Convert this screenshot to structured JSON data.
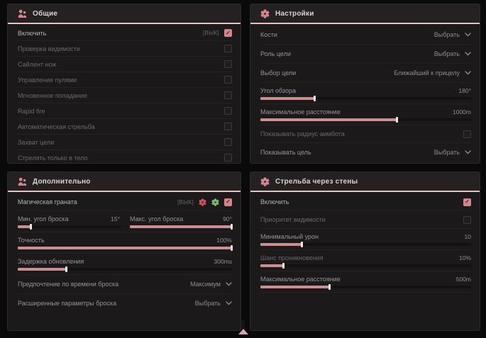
{
  "colors": {
    "accent_pink": "#d2868e",
    "slider_fill": "#c98f93",
    "header_underline": "#e4c2c6",
    "panel_background": "#1c191a",
    "checkbox_checked": "#d2868e"
  },
  "panels": {
    "general": {
      "title": "Общие",
      "icon": "people-icon",
      "rows": [
        {
          "label": "Включить",
          "tag": "[ВЫК]",
          "checked": true
        },
        {
          "label": "Проверка видимости",
          "checked": false
        },
        {
          "label": "Сайлент нож",
          "checked": false
        },
        {
          "label": "Управление пулями",
          "checked": false
        },
        {
          "label": "Мгновенное попадание",
          "checked": false
        },
        {
          "label": "Rapid fire",
          "checked": false
        },
        {
          "label": "Автоматическая стрельба",
          "checked": false
        },
        {
          "label": "Захват цели",
          "checked": false
        },
        {
          "label": "Стрелять только в тело",
          "checked": false
        }
      ]
    },
    "settings": {
      "title": "Настройки",
      "icon": "gear-flower-icon",
      "rows": {
        "bones": {
          "label": "Кости",
          "value": "Выбрать"
        },
        "target_role": {
          "label": "Роль цели",
          "value": "Выбрать"
        },
        "target_select": {
          "label": "Выбор цели",
          "value": "Ближайший к прицелу"
        },
        "fov": {
          "label": "Угол обзора",
          "value": "180°",
          "fill_pct": 26
        },
        "max_distance": {
          "label": "Максимальное расстояние",
          "value": "1000m",
          "fill_pct": 65
        },
        "show_radius": {
          "label": "Показывать радиус аимбота",
          "checked": false
        },
        "show_target": {
          "label": "Показывать цель",
          "value": "Выбрать"
        }
      }
    },
    "additional": {
      "title": "Дополнительно",
      "icon": "people-icon",
      "rows": {
        "magic_grenade": {
          "label": "Магическая граната",
          "tag": "[ВЫК]",
          "checked": true
        },
        "min_angle": {
          "label": "Мин. угол броска",
          "value": "15°",
          "fill_pct": 13
        },
        "max_angle": {
          "label": "Макс. угол броска",
          "value": "90°",
          "fill_pct": 100
        },
        "accuracy": {
          "label": "Точность",
          "value": "100%",
          "fill_pct": 100
        },
        "update_delay": {
          "label": "Задержка обновления",
          "value": "300ms",
          "fill_pct": 23
        },
        "throw_time": {
          "label": "Предпочтение по времени броска",
          "value": "Максимум"
        },
        "advanced": {
          "label": "Расширенные параметры броска",
          "value": "Выбрать"
        }
      }
    },
    "wallbang": {
      "title": "Стрельба через стены",
      "icon": "gear-flower-icon",
      "rows": {
        "enable": {
          "label": "Включить",
          "checked": true
        },
        "visibility_priority": {
          "label": "Приоритет видимости",
          "checked": false
        },
        "min_damage": {
          "label": "Минимальный урон",
          "value": "10",
          "fill_pct": 20
        },
        "penetration_chance": {
          "label": "Шанс проникновения",
          "value": "10%",
          "fill_pct": 11
        },
        "max_distance": {
          "label": "Максимальное расстояние",
          "value": "500m",
          "fill_pct": 33
        }
      }
    }
  }
}
